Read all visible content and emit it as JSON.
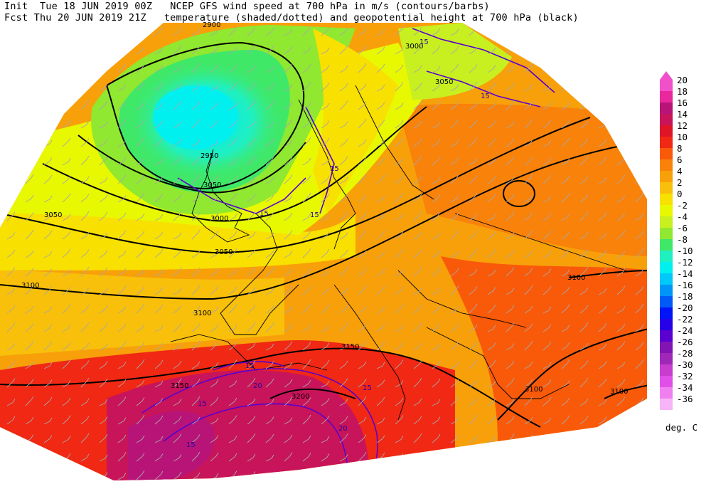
{
  "header": {
    "line1_left": "Init  Tue 18 JUN 2019 00Z",
    "line1_right": "NCEP GFS wind speed at 700 hPa in m/s (contours/barbs)",
    "line2_left": "Fcst Thu 20 JUN 2019 21Z",
    "line2_right": "temperature (shaded/dotted) and geopotential height at 700 hPa (black)"
  },
  "colorbar": {
    "units": "deg. C",
    "levels": [
      {
        "label": "20",
        "color": "#f050c8"
      },
      {
        "label": "18",
        "color": "#e8289c"
      },
      {
        "label": "16",
        "color": "#b81478"
      },
      {
        "label": "14",
        "color": "#c8145a"
      },
      {
        "label": "12",
        "color": "#e01428"
      },
      {
        "label": "10",
        "color": "#f02814"
      },
      {
        "label": "8",
        "color": "#f85a0a"
      },
      {
        "label": "6",
        "color": "#f8820a"
      },
      {
        "label": "4",
        "color": "#f8a00a"
      },
      {
        "label": "2",
        "color": "#f8c00a"
      },
      {
        "label": "0",
        "color": "#f8e000"
      },
      {
        "label": "-2",
        "color": "#e8f800"
      },
      {
        "label": "-4",
        "color": "#c8f020"
      },
      {
        "label": "-6",
        "color": "#90e830"
      },
      {
        "label": "-8",
        "color": "#40e868"
      },
      {
        "label": "-10",
        "color": "#20f0c0"
      },
      {
        "label": "-12",
        "color": "#00f0f0"
      },
      {
        "label": "-14",
        "color": "#00c8f8"
      },
      {
        "label": "-16",
        "color": "#0096f8"
      },
      {
        "label": "-18",
        "color": "#005af8"
      },
      {
        "label": "-20",
        "color": "#0014f8"
      },
      {
        "label": "-22",
        "color": "#2800e8"
      },
      {
        "label": "-24",
        "color": "#5a00d0"
      },
      {
        "label": "-26",
        "color": "#8214b4"
      },
      {
        "label": "-28",
        "color": "#a028b8"
      },
      {
        "label": "-30",
        "color": "#c83cd0"
      },
      {
        "label": "-32",
        "color": "#e050e8"
      },
      {
        "label": "-34",
        "color": "#f080f0"
      },
      {
        "label": "-36",
        "color": "#f8b4f8"
      }
    ]
  },
  "map_labels": {
    "height_contours": [
      "2900",
      "3000",
      "3050",
      "2950",
      "3050",
      "3000",
      "3050",
      "3050",
      "3100",
      "3100",
      "3100",
      "3150",
      "3150",
      "3200",
      "3100",
      "3100"
    ],
    "wind_contours": [
      "15",
      "15",
      "15",
      "15",
      "15",
      "15",
      "20",
      "15",
      "15",
      "20",
      "15"
    ]
  }
}
